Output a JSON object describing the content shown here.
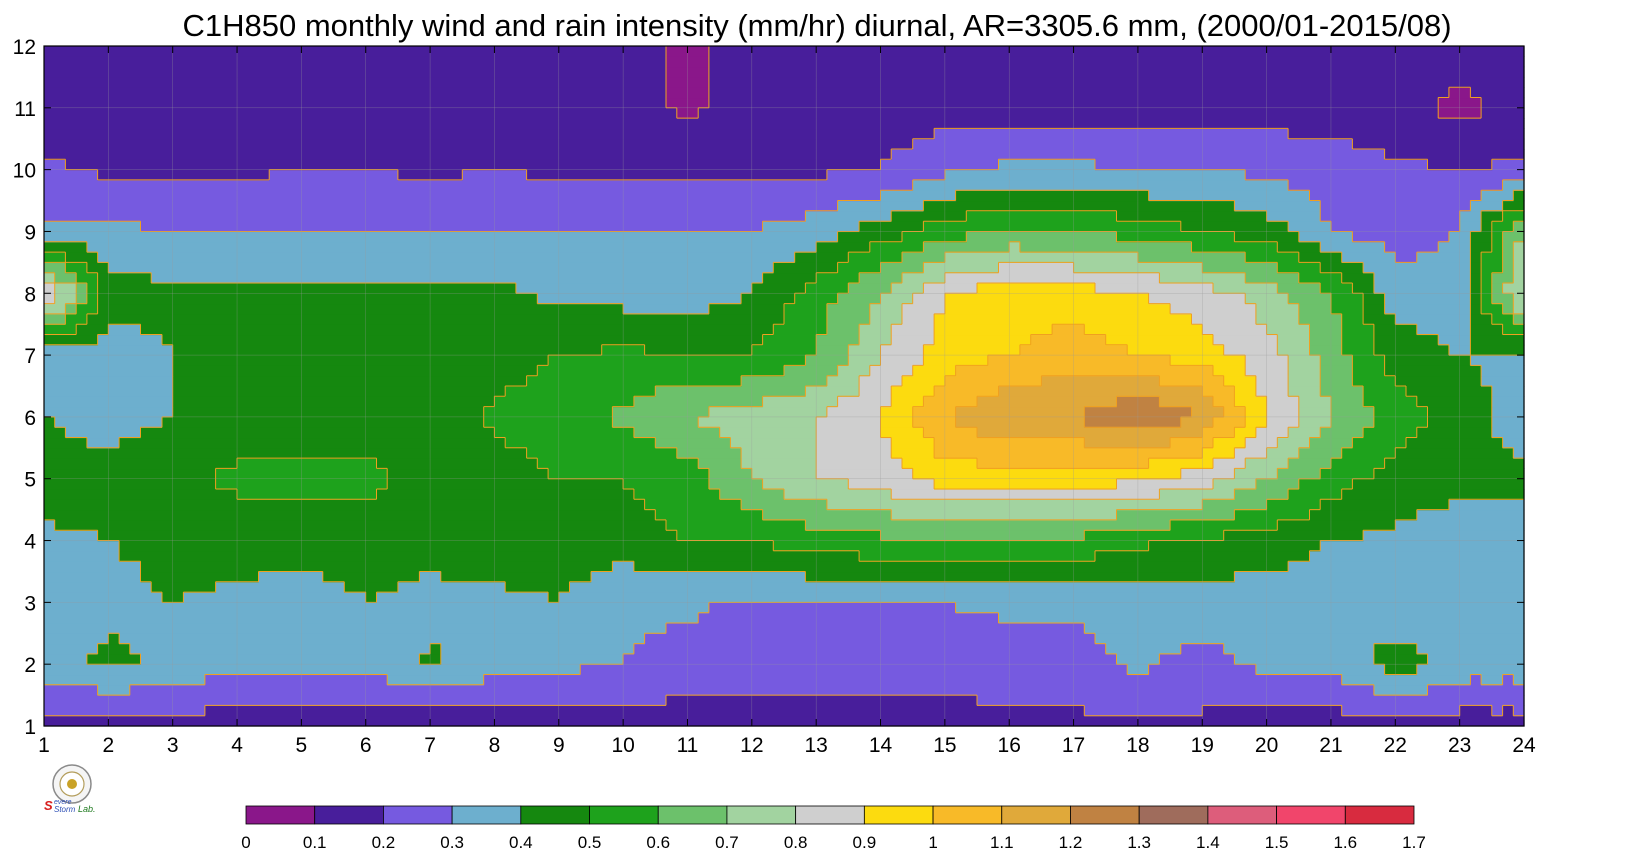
{
  "chart_data": {
    "type": "heatmap",
    "title": "C1H850 monthly wind and rain intensity (mm/hr) diurnal, AR=3305.6 mm, (2000/01-2015/08)",
    "x": [
      1,
      2,
      3,
      4,
      5,
      6,
      7,
      8,
      9,
      10,
      11,
      12,
      13,
      14,
      15,
      16,
      17,
      18,
      19,
      20,
      21,
      22,
      23,
      24
    ],
    "y": [
      1,
      2,
      3,
      4,
      5,
      6,
      7,
      8,
      9,
      10,
      11,
      12
    ],
    "xlim": [
      1,
      24
    ],
    "ylim": [
      1,
      12
    ],
    "x_tick_labels": [
      "1",
      "2",
      "3",
      "4",
      "5",
      "6",
      "7",
      "8",
      "9",
      "10",
      "11",
      "12",
      "13",
      "14",
      "15",
      "16",
      "17",
      "18",
      "19",
      "20",
      "21",
      "22",
      "23",
      "24"
    ],
    "y_tick_labels": [
      "1",
      "2",
      "3",
      "4",
      "5",
      "6",
      "7",
      "8",
      "9",
      "10",
      "11",
      "12"
    ],
    "grid": true,
    "units": "mm/hr",
    "z_rows_by_y": [
      [
        0.15,
        0.15,
        0.15,
        0.15,
        0.15,
        0.15,
        0.12,
        0.15,
        0.15,
        0.15,
        0.15,
        0.15,
        0.15,
        0.15,
        0.15,
        0.18,
        0.18,
        0.18,
        0.18,
        0.15,
        0.15,
        0.15,
        0.15,
        0.15
      ],
      [
        0.35,
        0.42,
        0.38,
        0.32,
        0.32,
        0.32,
        0.42,
        0.34,
        0.32,
        0.3,
        0.26,
        0.25,
        0.25,
        0.25,
        0.25,
        0.25,
        0.25,
        0.32,
        0.26,
        0.33,
        0.33,
        0.45,
        0.35,
        0.35
      ],
      [
        0.36,
        0.38,
        0.4,
        0.38,
        0.34,
        0.4,
        0.36,
        0.38,
        0.4,
        0.32,
        0.32,
        0.28,
        0.3,
        0.28,
        0.3,
        0.32,
        0.32,
        0.35,
        0.36,
        0.35,
        0.34,
        0.34,
        0.34,
        0.34
      ],
      [
        0.38,
        0.4,
        0.42,
        0.45,
        0.45,
        0.45,
        0.45,
        0.45,
        0.45,
        0.45,
        0.5,
        0.5,
        0.55,
        0.58,
        0.58,
        0.58,
        0.58,
        0.52,
        0.48,
        0.45,
        0.4,
        0.38,
        0.36,
        0.36
      ],
      [
        0.45,
        0.45,
        0.48,
        0.52,
        0.52,
        0.52,
        0.48,
        0.45,
        0.5,
        0.5,
        0.55,
        0.7,
        0.8,
        0.85,
        0.95,
        0.95,
        0.95,
        0.92,
        0.85,
        0.7,
        0.55,
        0.45,
        0.42,
        0.42
      ],
      [
        0.4,
        0.35,
        0.4,
        0.45,
        0.45,
        0.45,
        0.45,
        0.52,
        0.55,
        0.62,
        0.7,
        0.75,
        0.8,
        0.9,
        1.1,
        1.2,
        1.2,
        1.3,
        1.2,
        0.9,
        0.7,
        0.55,
        0.45,
        0.35
      ],
      [
        0.32,
        0.35,
        0.4,
        0.42,
        0.42,
        0.45,
        0.45,
        0.45,
        0.5,
        0.52,
        0.5,
        0.5,
        0.6,
        0.8,
        0.95,
        1.0,
        1.05,
        1.0,
        0.95,
        0.85,
        0.65,
        0.45,
        0.4,
        0.38
      ],
      [
        0.95,
        0.45,
        0.42,
        0.42,
        0.42,
        0.42,
        0.42,
        0.42,
        0.38,
        0.36,
        0.35,
        0.4,
        0.55,
        0.7,
        0.9,
        0.95,
        0.95,
        0.9,
        0.85,
        0.75,
        0.6,
        0.35,
        0.35,
        0.85
      ],
      [
        0.32,
        0.32,
        0.3,
        0.3,
        0.3,
        0.3,
        0.3,
        0.3,
        0.3,
        0.3,
        0.3,
        0.3,
        0.35,
        0.45,
        0.55,
        0.62,
        0.6,
        0.55,
        0.5,
        0.45,
        0.3,
        0.25,
        0.3,
        0.7
      ],
      [
        0.22,
        0.18,
        0.18,
        0.18,
        0.2,
        0.2,
        0.18,
        0.2,
        0.18,
        0.18,
        0.18,
        0.18,
        0.18,
        0.2,
        0.28,
        0.32,
        0.32,
        0.3,
        0.3,
        0.28,
        0.25,
        0.22,
        0.2,
        0.22
      ],
      [
        0.15,
        0.15,
        0.15,
        0.15,
        0.15,
        0.15,
        0.15,
        0.15,
        0.15,
        0.15,
        0.08,
        0.15,
        0.12,
        0.15,
        0.15,
        0.15,
        0.15,
        0.15,
        0.15,
        0.15,
        0.15,
        0.12,
        0.08,
        0.12
      ],
      [
        0.15,
        0.15,
        0.15,
        0.15,
        0.15,
        0.15,
        0.15,
        0.15,
        0.15,
        0.15,
        0.08,
        0.15,
        0.15,
        0.15,
        0.15,
        0.15,
        0.15,
        0.15,
        0.15,
        0.15,
        0.15,
        0.15,
        0.15,
        0.15
      ]
    ],
    "colorbar": {
      "levels": [
        "0",
        "0.1",
        "0.2",
        "0.3",
        "0.4",
        "0.5",
        "0.6",
        "0.7",
        "0.8",
        "0.9",
        "1",
        "1.1",
        "1.2",
        "1.3",
        "1.4",
        "1.5",
        "1.6",
        "1.7"
      ],
      "colors": [
        "#8a178a",
        "#481e9b",
        "#765ae0",
        "#6dafce",
        "#15880f",
        "#1ea21c",
        "#6cc16b",
        "#a2d3a0",
        "#cfcfcf",
        "#fcdb0f",
        "#f8ba28",
        "#e0a93a",
        "#c08242",
        "#9f6c5c",
        "#dd5d7b",
        "#f1456b",
        "#d82b3f"
      ]
    },
    "contour_line_color": "#f0a020"
  },
  "logo": {
    "text_s": "S",
    "text_evere": "evere",
    "text_storm": "Storm",
    "text_lab": "Lab."
  }
}
